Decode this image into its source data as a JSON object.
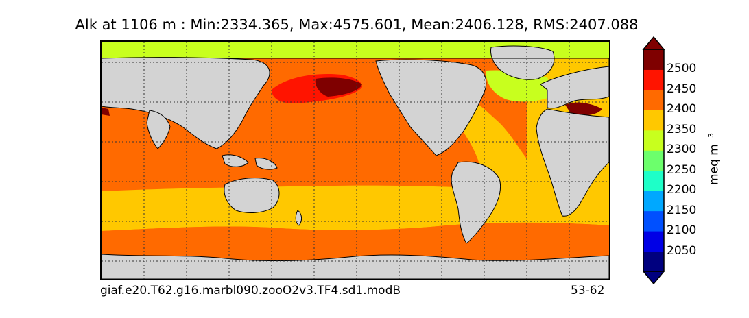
{
  "figure": {
    "title": "Alk at 1106 m : Min:2334.365, Max:4575.601, Mean:2406.128, RMS:2407.088",
    "case_name": "giaf.e20.T62.g16.marbl090.zooO2v3.TF4.sd1.modB",
    "years": "53-62"
  },
  "colorbar": {
    "label": "meq m",
    "label_exponent": "−3",
    "ticks": [
      "2050",
      "2100",
      "2150",
      "2200",
      "2250",
      "2300",
      "2350",
      "2400",
      "2450",
      "2500"
    ],
    "colors": [
      "#00007f",
      "#0000e6",
      "#0050ff",
      "#00a8ff",
      "#1effc8",
      "#6cff6c",
      "#c8ff1e",
      "#ffc800",
      "#ff6a00",
      "#ff1400",
      "#7f0000"
    ],
    "extend": "both"
  },
  "map": {
    "variable": "Alk",
    "depth": "1106 m",
    "land_color": "#d3d3d3",
    "gridlines": "dotted"
  }
}
